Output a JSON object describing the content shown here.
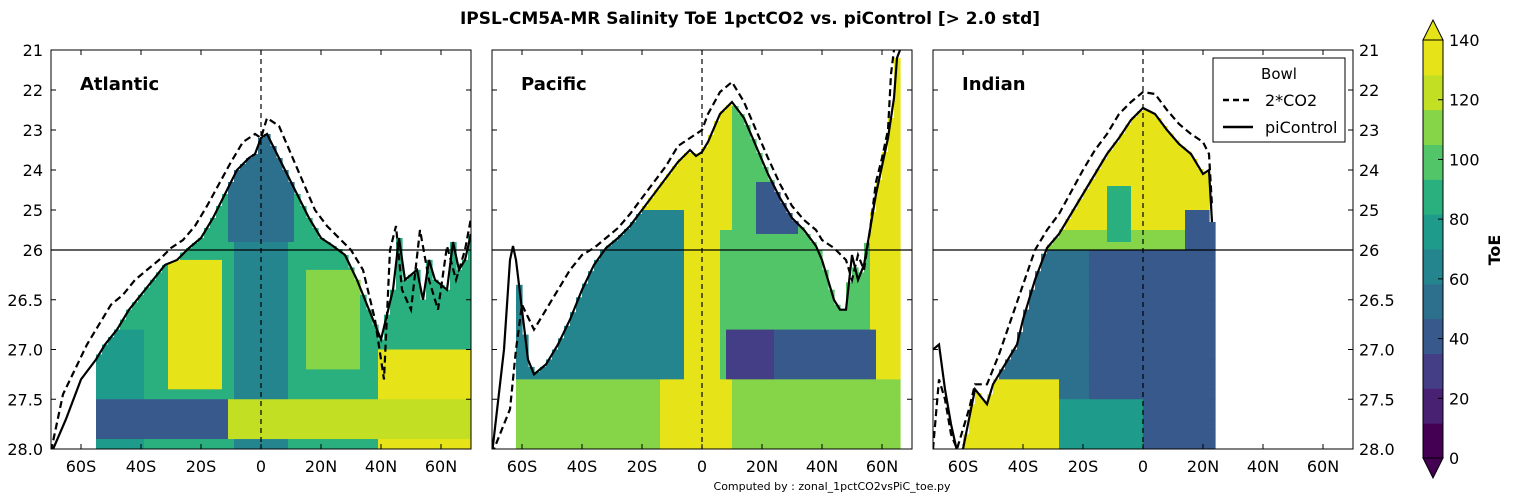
{
  "chart_data": {
    "type": "heatmap",
    "title": "IPSL-CM5A-MR Salinity ToE 1pctCO2 vs. piControl [> 2.0 std]",
    "footer": "Computed by : zonal_1pctCO2vsPiC_toe.py",
    "y_axis": {
      "ticks": [
        "21",
        "22",
        "23",
        "24",
        "25",
        "26",
        "26.5",
        "27.0",
        "27.5",
        "28.0"
      ],
      "upper_range": [
        21,
        26
      ],
      "lower_range": [
        26,
        28
      ],
      "break_at": 26
    },
    "x_axis": {
      "range": [
        -70,
        70
      ],
      "ticks": [
        -60,
        -40,
        -20,
        0,
        20,
        40,
        60
      ],
      "tick_labels": [
        "60S",
        "40S",
        "20S",
        "0",
        "20N",
        "40N",
        "60N"
      ]
    },
    "panels": [
      {
        "name": "Atlantic",
        "data_lat_range": [
          -55,
          70
        ],
        "bowl_piControl": [
          [
            -70,
            28.05
          ],
          [
            -65,
            27.7
          ],
          [
            -60,
            27.3
          ],
          [
            -55,
            27.1
          ],
          [
            -52,
            26.95
          ],
          [
            -48,
            26.8
          ],
          [
            -44,
            26.6
          ],
          [
            -40,
            26.45
          ],
          [
            -36,
            26.3
          ],
          [
            -32,
            26.15
          ],
          [
            -28,
            26.1
          ],
          [
            -24,
            25.95
          ],
          [
            -20,
            25.7
          ],
          [
            -16,
            25.2
          ],
          [
            -12,
            24.6
          ],
          [
            -8,
            24.0
          ],
          [
            -4,
            23.7
          ],
          [
            -2,
            23.6
          ],
          [
            0,
            23.2
          ],
          [
            2,
            23.1
          ],
          [
            4,
            23.4
          ],
          [
            8,
            24.0
          ],
          [
            12,
            24.6
          ],
          [
            16,
            25.2
          ],
          [
            20,
            25.7
          ],
          [
            24,
            25.9
          ],
          [
            28,
            26.05
          ],
          [
            32,
            26.3
          ],
          [
            36,
            26.6
          ],
          [
            40,
            26.9
          ],
          [
            44,
            26.4
          ],
          [
            46,
            25.7
          ],
          [
            48,
            26.3
          ],
          [
            52,
            26.2
          ],
          [
            54,
            26.5
          ],
          [
            56,
            26.1
          ],
          [
            58,
            26.3
          ],
          [
            62,
            26.4
          ],
          [
            64,
            25.8
          ],
          [
            66,
            26.2
          ],
          [
            68,
            26.1
          ],
          [
            70,
            25.6
          ]
        ],
        "bowl_2xCO2": [
          [
            -70,
            28.02
          ],
          [
            -66,
            27.45
          ],
          [
            -62,
            27.2
          ],
          [
            -58,
            26.95
          ],
          [
            -54,
            26.75
          ],
          [
            -50,
            26.55
          ],
          [
            -46,
            26.45
          ],
          [
            -42,
            26.3
          ],
          [
            -38,
            26.2
          ],
          [
            -34,
            26.1
          ],
          [
            -30,
            25.95
          ],
          [
            -26,
            25.75
          ],
          [
            -22,
            25.4
          ],
          [
            -18,
            24.9
          ],
          [
            -14,
            24.35
          ],
          [
            -10,
            23.8
          ],
          [
            -6,
            23.3
          ],
          [
            -2,
            23.1
          ],
          [
            0,
            23.2
          ],
          [
            2,
            22.7
          ],
          [
            6,
            22.9
          ],
          [
            10,
            23.6
          ],
          [
            14,
            24.3
          ],
          [
            18,
            25.0
          ],
          [
            22,
            25.4
          ],
          [
            26,
            25.7
          ],
          [
            30,
            26.0
          ],
          [
            34,
            26.2
          ],
          [
            38,
            26.7
          ],
          [
            41,
            27.3
          ],
          [
            43,
            26.0
          ],
          [
            45,
            25.4
          ],
          [
            47,
            26.4
          ],
          [
            50,
            26.6
          ],
          [
            53,
            25.5
          ],
          [
            56,
            26.3
          ],
          [
            59,
            26.6
          ],
          [
            62,
            25.9
          ],
          [
            65,
            26.3
          ],
          [
            68,
            26.0
          ],
          [
            70,
            25.2
          ]
        ]
      },
      {
        "name": "Pacific",
        "data_lat_range": [
          -62,
          65
        ],
        "bowl_piControl": [
          [
            -70,
            28.05
          ],
          [
            -66,
            27.0
          ],
          [
            -64,
            26.1
          ],
          [
            -63,
            25.9
          ],
          [
            -62,
            26.1
          ],
          [
            -60,
            26.6
          ],
          [
            -58,
            27.1
          ],
          [
            -56,
            27.25
          ],
          [
            -52,
            27.15
          ],
          [
            -48,
            26.95
          ],
          [
            -44,
            26.7
          ],
          [
            -40,
            26.4
          ],
          [
            -36,
            26.15
          ],
          [
            -32,
            25.95
          ],
          [
            -28,
            25.7
          ],
          [
            -24,
            25.4
          ],
          [
            -20,
            25.0
          ],
          [
            -16,
            24.6
          ],
          [
            -12,
            24.2
          ],
          [
            -8,
            23.8
          ],
          [
            -4,
            23.5
          ],
          [
            -2,
            23.65
          ],
          [
            0,
            23.55
          ],
          [
            2,
            23.3
          ],
          [
            6,
            22.6
          ],
          [
            10,
            22.3
          ],
          [
            14,
            22.7
          ],
          [
            18,
            23.4
          ],
          [
            22,
            24.1
          ],
          [
            26,
            24.7
          ],
          [
            30,
            25.2
          ],
          [
            34,
            25.5
          ],
          [
            38,
            25.9
          ],
          [
            40,
            26.1
          ],
          [
            44,
            26.5
          ],
          [
            46,
            26.6
          ],
          [
            48,
            26.6
          ],
          [
            50,
            26.05
          ],
          [
            52,
            26.3
          ],
          [
            54,
            26.15
          ],
          [
            56,
            25.5
          ],
          [
            58,
            24.6
          ],
          [
            60,
            23.9
          ],
          [
            62,
            23.2
          ],
          [
            64,
            22.2
          ],
          [
            65,
            21.2
          ],
          [
            66,
            21.0
          ]
        ],
        "bowl_2xCO2": [
          [
            -70,
            28.05
          ],
          [
            -64,
            27.6
          ],
          [
            -62,
            27.0
          ],
          [
            -60,
            26.55
          ],
          [
            -56,
            26.8
          ],
          [
            -52,
            26.6
          ],
          [
            -48,
            26.4
          ],
          [
            -44,
            26.2
          ],
          [
            -40,
            26.05
          ],
          [
            -36,
            25.95
          ],
          [
            -32,
            25.7
          ],
          [
            -28,
            25.45
          ],
          [
            -24,
            25.1
          ],
          [
            -20,
            24.7
          ],
          [
            -16,
            24.3
          ],
          [
            -12,
            23.9
          ],
          [
            -8,
            23.4
          ],
          [
            -4,
            23.2
          ],
          [
            0,
            23.0
          ],
          [
            2,
            22.6
          ],
          [
            6,
            22.05
          ],
          [
            10,
            21.8
          ],
          [
            14,
            22.3
          ],
          [
            18,
            23.0
          ],
          [
            22,
            23.7
          ],
          [
            26,
            24.35
          ],
          [
            30,
            24.9
          ],
          [
            34,
            25.25
          ],
          [
            38,
            25.5
          ],
          [
            40,
            25.75
          ],
          [
            44,
            25.95
          ],
          [
            48,
            26.1
          ],
          [
            50,
            26.3
          ],
          [
            52,
            26.05
          ],
          [
            54,
            26.2
          ],
          [
            56,
            25.5
          ],
          [
            58,
            24.3
          ],
          [
            60,
            23.7
          ],
          [
            62,
            23.0
          ],
          [
            63,
            21.6
          ],
          [
            64,
            21.0
          ]
        ]
      },
      {
        "name": "Indian",
        "data_lat_range": [
          -62,
          23
        ],
        "bowl_piControl": [
          [
            -70,
            27.0
          ],
          [
            -68,
            26.95
          ],
          [
            -66,
            27.4
          ],
          [
            -64,
            27.75
          ],
          [
            -62,
            28.02
          ],
          [
            -60,
            28.0
          ],
          [
            -58,
            27.7
          ],
          [
            -56,
            27.4
          ],
          [
            -52,
            27.55
          ],
          [
            -50,
            27.35
          ],
          [
            -46,
            27.15
          ],
          [
            -42,
            26.95
          ],
          [
            -40,
            26.7
          ],
          [
            -36,
            26.3
          ],
          [
            -32,
            25.95
          ],
          [
            -28,
            25.6
          ],
          [
            -24,
            25.1
          ],
          [
            -20,
            24.6
          ],
          [
            -16,
            24.1
          ],
          [
            -12,
            23.6
          ],
          [
            -8,
            23.2
          ],
          [
            -4,
            22.75
          ],
          [
            0,
            22.45
          ],
          [
            4,
            22.6
          ],
          [
            8,
            23.0
          ],
          [
            12,
            23.35
          ],
          [
            16,
            23.6
          ],
          [
            20,
            24.1
          ],
          [
            22,
            24.0
          ],
          [
            23,
            25.3
          ]
        ],
        "bowl_2xCO2": [
          [
            -70,
            28.0
          ],
          [
            -68,
            27.3
          ],
          [
            -66,
            27.5
          ],
          [
            -64,
            27.85
          ],
          [
            -62,
            28.0
          ],
          [
            -58,
            27.6
          ],
          [
            -56,
            27.35
          ],
          [
            -52,
            27.35
          ],
          [
            -48,
            27.05
          ],
          [
            -44,
            26.7
          ],
          [
            -40,
            26.35
          ],
          [
            -36,
            26.0
          ],
          [
            -32,
            25.5
          ],
          [
            -28,
            25.1
          ],
          [
            -24,
            24.55
          ],
          [
            -20,
            24.0
          ],
          [
            -16,
            23.5
          ],
          [
            -12,
            23.1
          ],
          [
            -8,
            22.6
          ],
          [
            -4,
            22.3
          ],
          [
            0,
            22.05
          ],
          [
            4,
            22.1
          ],
          [
            8,
            22.5
          ],
          [
            12,
            22.85
          ],
          [
            16,
            23.1
          ],
          [
            20,
            23.3
          ],
          [
            22,
            23.6
          ],
          [
            23,
            24.9
          ]
        ]
      }
    ],
    "legend": {
      "title": "Bowl",
      "placement": "top-right of Indian panel",
      "entries": [
        {
          "label": "2*CO2",
          "style": "dashed"
        },
        {
          "label": "piControl",
          "style": "solid"
        }
      ]
    },
    "colorbar": {
      "label": "ToE",
      "tick_labels": [
        "0",
        "20",
        "40",
        "60",
        "80",
        "100",
        "120",
        "140"
      ],
      "levels": [
        0,
        10,
        20,
        30,
        40,
        50,
        60,
        70,
        80,
        90,
        100,
        110,
        120,
        130,
        140
      ],
      "colors": [
        "#440154",
        "#482173",
        "#433e85",
        "#38598c",
        "#2d708e",
        "#25858e",
        "#1e9b8a",
        "#2ab07f",
        "#52c569",
        "#86d549",
        "#c2df23",
        "#e6e419"
      ]
    },
    "colors": {
      "line": "#000000",
      "background": "#ffffff"
    }
  }
}
